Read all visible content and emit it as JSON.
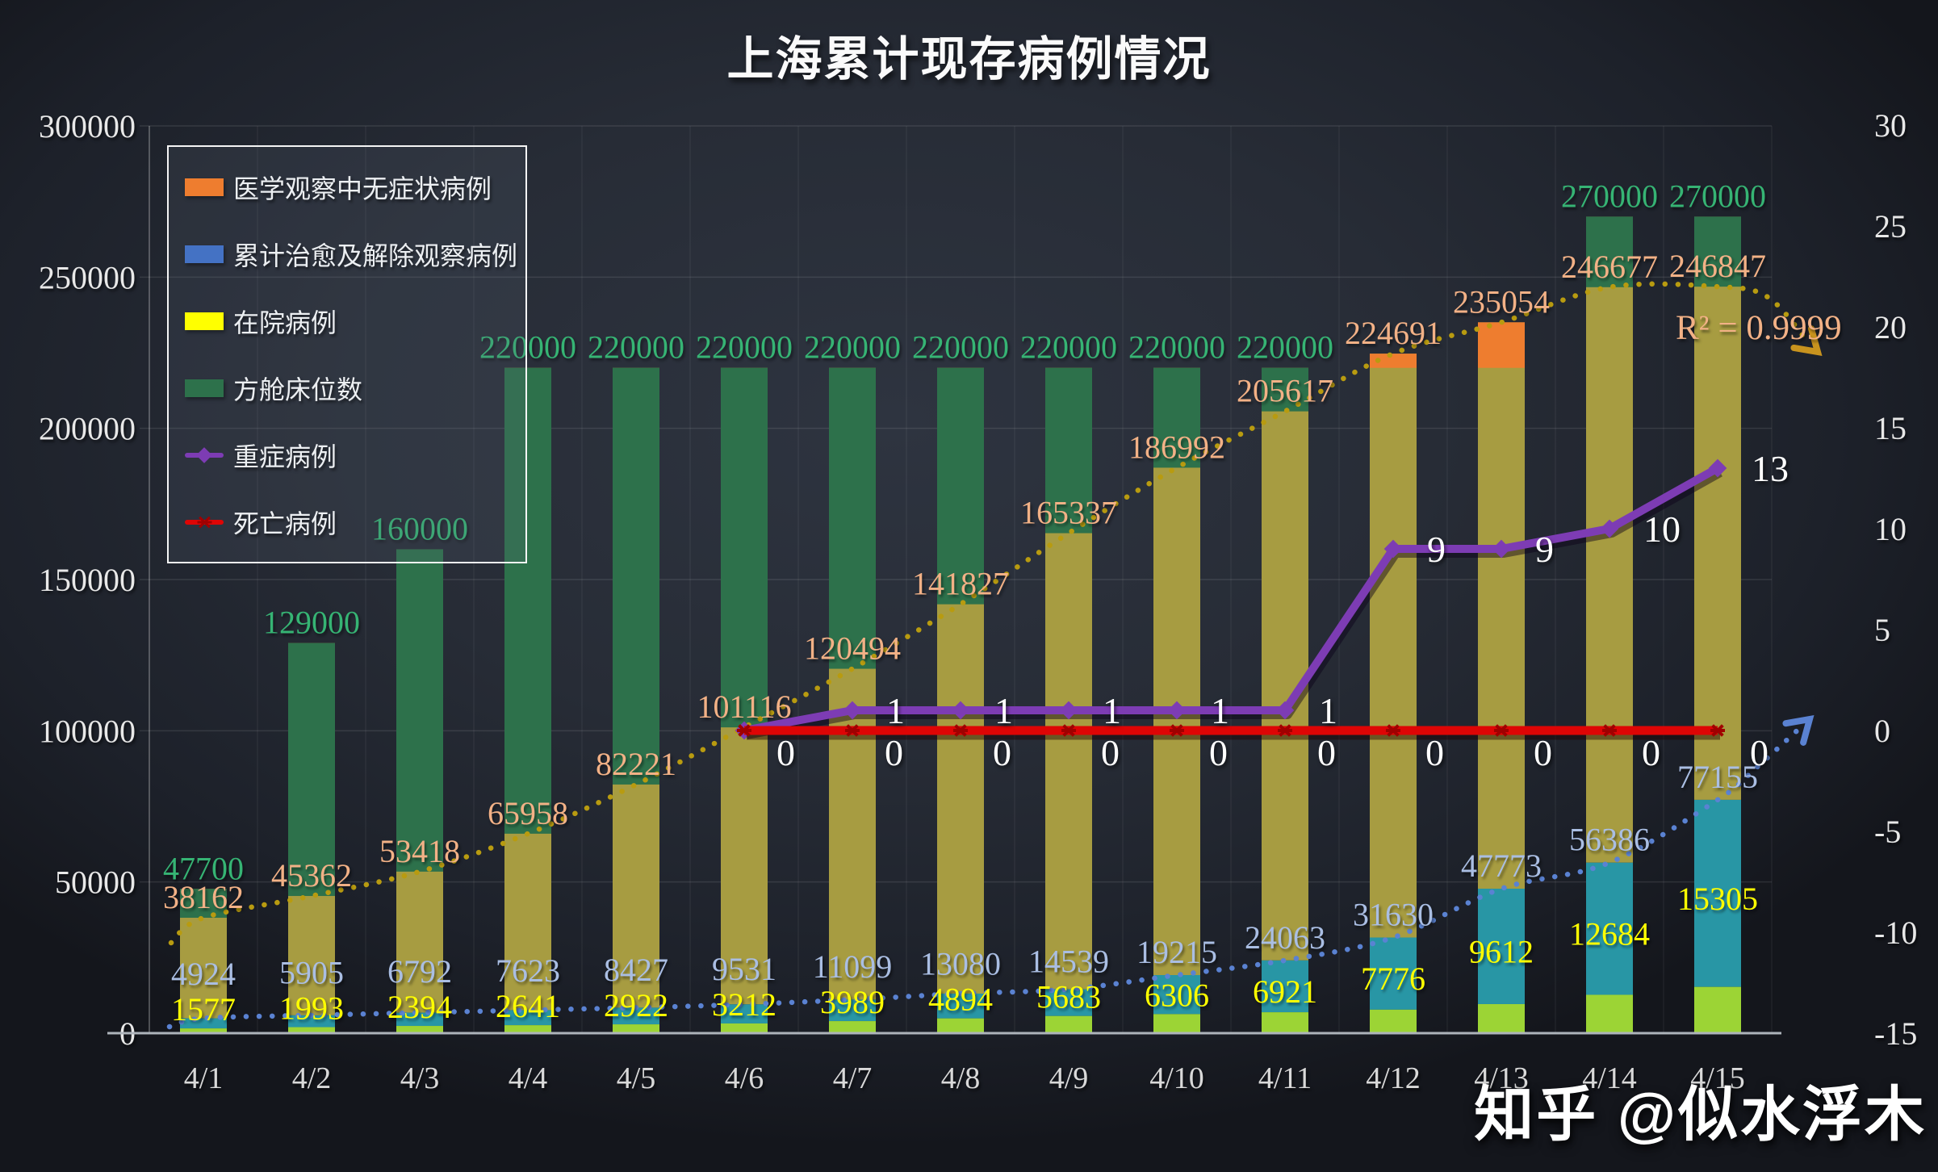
{
  "title": "上海累计现存病例情况",
  "watermark": "知乎 @似水浮木",
  "r2_annotation": "R² = 0.9999",
  "colors": {
    "asymptomatic_bar": "#EE7D2F",
    "asymptomatic_label": "#F2B186",
    "cured_bar": "#4472C4",
    "cured_overlap_teal": "#2896A5",
    "cured_label": "#AABEE3",
    "hospitalized_bar": "#FFFF00",
    "hospitalized_overlap_lime": "#9CD435",
    "hospitalized_label": "#FFFF00",
    "fangcang_bar": "#2D714B",
    "fangcang_overlap_olive": "#A79C41",
    "fangcang_label": "#36B474",
    "severe_line": "#7D3CB4",
    "death_line": "#DE0505",
    "trend_asymptomatic": "#B89B10",
    "trend_cured": "#5A82D2",
    "line_value_label": "#FFFFFF"
  },
  "legend": [
    {
      "label": "医学观察中无症状病例",
      "marker": "rect",
      "color": "#EE7D2F"
    },
    {
      "label": "累计治愈及解除观察病例",
      "marker": "rect",
      "color": "#4472C4"
    },
    {
      "label": "在院病例",
      "marker": "rect",
      "color": "#FFFF00"
    },
    {
      "label": "方舱床位数",
      "marker": "rect",
      "color": "#2D714B"
    },
    {
      "label": "重症病例",
      "marker": "line-diamond",
      "color": "#7D3CB4"
    },
    {
      "label": "死亡病例",
      "marker": "line-x",
      "color": "#DE0505"
    }
  ],
  "chart_data": {
    "type": "combo: overlaid transparent bars (left axis) + lines (right axis) + dotted polynomial trendlines with arrows",
    "categories": [
      "4/1",
      "4/2",
      "4/3",
      "4/4",
      "4/5",
      "4/6",
      "4/7",
      "4/8",
      "4/9",
      "4/10",
      "4/11",
      "4/12",
      "4/13",
      "4/14",
      "4/15"
    ],
    "left_axis": {
      "min": 0,
      "max": 300000,
      "step": 50000,
      "tick_labels": [
        "0",
        "50000",
        "100000",
        "150000",
        "200000",
        "250000",
        "300000"
      ]
    },
    "right_axis": {
      "min": -15,
      "max": 30,
      "step": 5,
      "tick_labels": [
        "-15",
        "-10",
        "-5",
        "0",
        "5",
        "10",
        "15",
        "20",
        "25",
        "30"
      ]
    },
    "series": [
      {
        "name": "医学观察中无症状病例",
        "axis": "left",
        "type": "bar",
        "values": [
          38162,
          45362,
          53418,
          65958,
          82221,
          101116,
          120494,
          141827,
          165337,
          186992,
          205617,
          224691,
          235054,
          246677,
          246847
        ]
      },
      {
        "name": "累计治愈及解除观察病例",
        "axis": "left",
        "type": "bar",
        "values": [
          4924,
          5905,
          6792,
          7623,
          8427,
          9531,
          11099,
          13080,
          14539,
          19215,
          24063,
          31630,
          47773,
          56386,
          77155
        ]
      },
      {
        "name": "在院病例",
        "axis": "left",
        "type": "bar",
        "values": [
          1577,
          1993,
          2394,
          2641,
          2922,
          3212,
          3989,
          4894,
          5683,
          6306,
          6921,
          7776,
          9612,
          12684,
          15305
        ]
      },
      {
        "name": "方舱床位数",
        "axis": "left",
        "type": "bar",
        "values": [
          47700,
          129000,
          160000,
          220000,
          220000,
          220000,
          220000,
          220000,
          220000,
          220000,
          220000,
          220000,
          220000,
          270000,
          270000
        ],
        "label_hidden_at": [
          "4/12",
          "4/13"
        ]
      },
      {
        "name": "重症病例",
        "axis": "right",
        "type": "line",
        "start_category": "4/6",
        "values": [
          0,
          1,
          1,
          1,
          1,
          1,
          9,
          9,
          10,
          13
        ],
        "labels": [
          "",
          "1",
          "1",
          "1",
          "1",
          "1",
          "9",
          "9",
          "10",
          "13"
        ]
      },
      {
        "name": "死亡病例",
        "axis": "right",
        "type": "line",
        "start_category": "4/6",
        "values": [
          0,
          0,
          0,
          0,
          0,
          0,
          0,
          0,
          0,
          0
        ],
        "labels": [
          "0",
          "0",
          "0",
          "0",
          "0",
          "0",
          "0",
          "0",
          "0",
          "0"
        ]
      }
    ],
    "trendlines": [
      {
        "on": "医学观察中无症状病例",
        "style": "dotted-arrow",
        "r2": "R² = 0.9999"
      },
      {
        "on": "累计治愈及解除观察病例",
        "style": "dotted-arrow"
      }
    ]
  }
}
